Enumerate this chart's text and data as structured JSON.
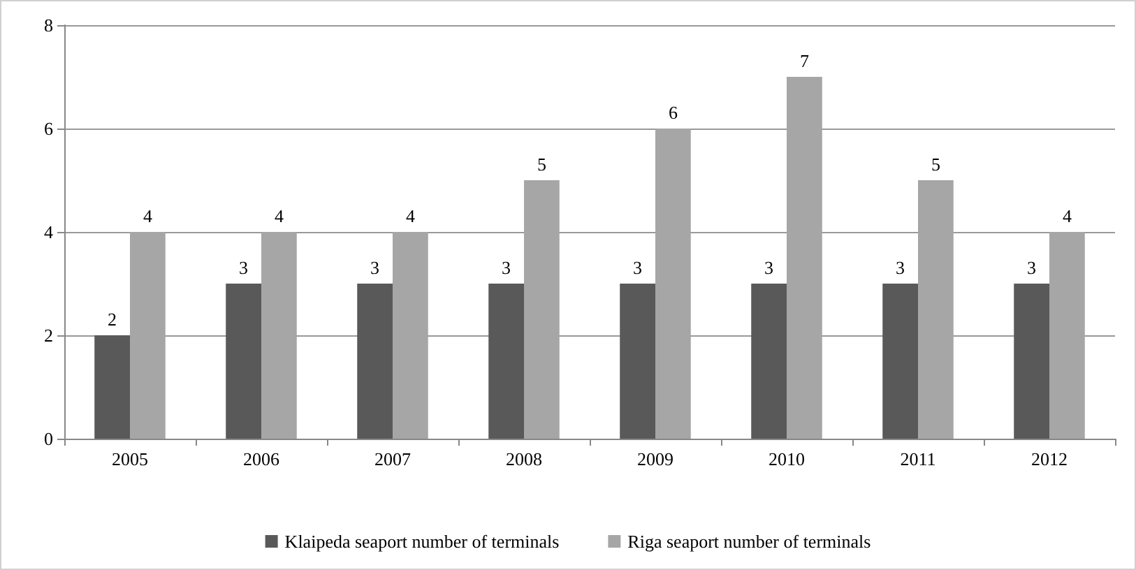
{
  "chart_data": {
    "type": "bar",
    "categories": [
      "2005",
      "2006",
      "2007",
      "2008",
      "2009",
      "2010",
      "2011",
      "2012"
    ],
    "series": [
      {
        "name": "Klaipeda seaport number of terminals",
        "color": "#595959",
        "values": [
          2,
          3,
          3,
          3,
          3,
          3,
          3,
          3
        ]
      },
      {
        "name": "Riga seaport number of terminals",
        "color": "#a6a6a6",
        "values": [
          4,
          4,
          4,
          5,
          6,
          7,
          5,
          4
        ]
      }
    ],
    "ylim": [
      0,
      8
    ],
    "yticks": [
      0,
      2,
      4,
      6,
      8
    ],
    "grid": "y",
    "legend": "bottom",
    "data_labels": true
  }
}
